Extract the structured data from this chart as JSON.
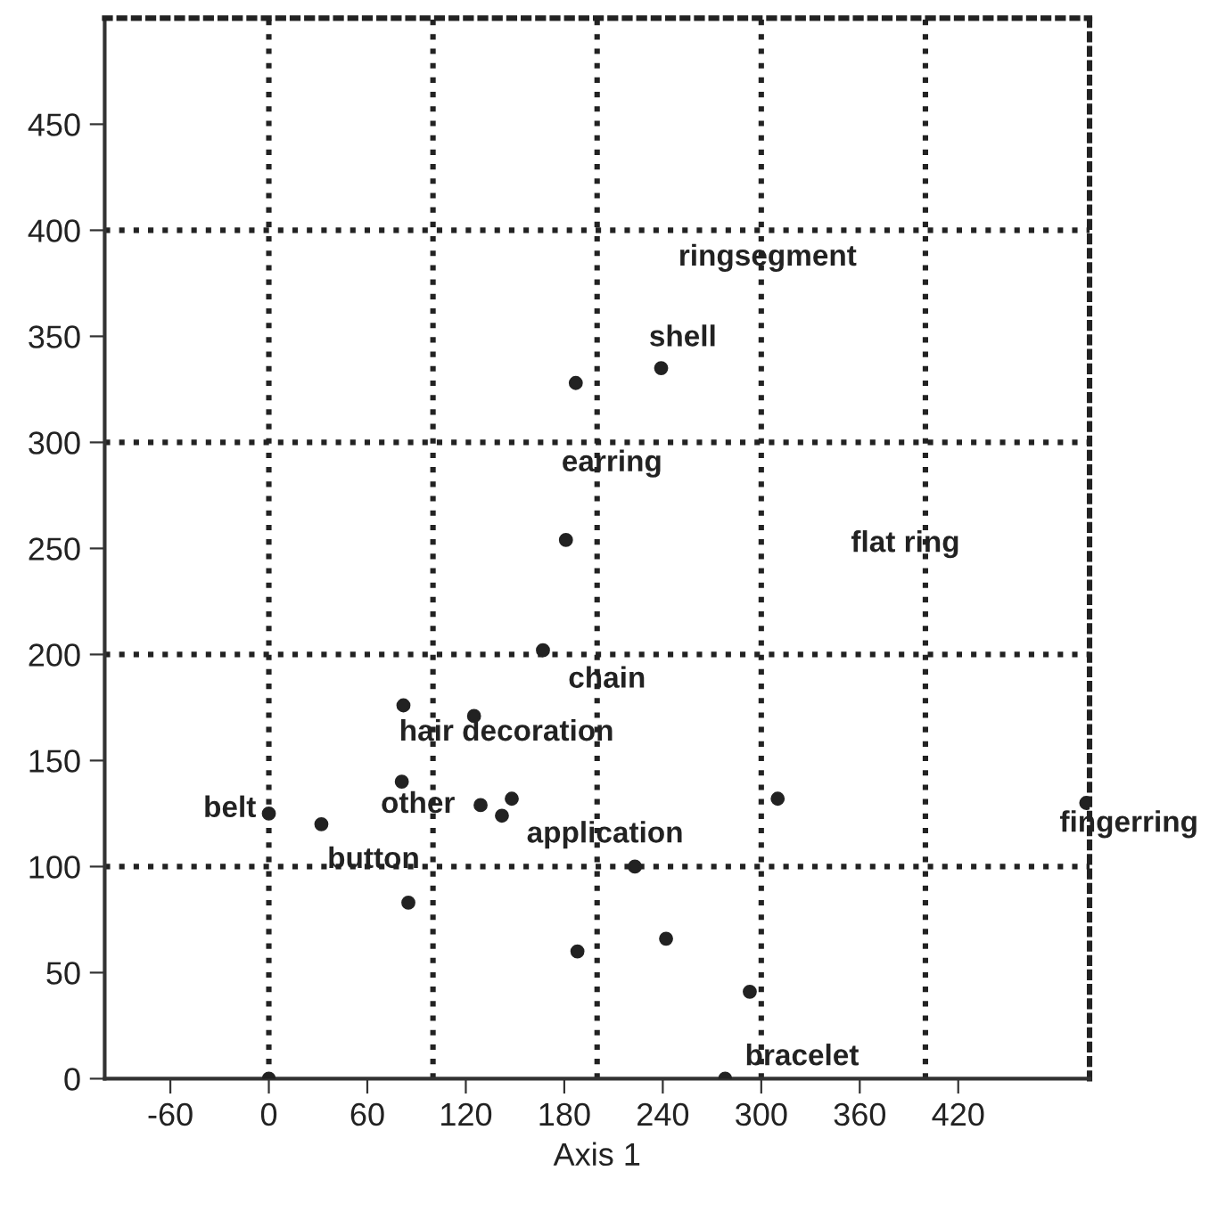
{
  "chart_data": {
    "type": "scatter",
    "xlabel": "Axis 1",
    "x": [
      0,
      0,
      32,
      82,
      81,
      85,
      125,
      129,
      142,
      148,
      167,
      223,
      188,
      242,
      293,
      278,
      310,
      498,
      187,
      239,
      181
    ],
    "series": [
      {
        "color": "#222222",
        "values": [
          0,
          125,
          120,
          176,
          140,
          83,
          171,
          129,
          124,
          132,
          202,
          100,
          60,
          66,
          41,
          0,
          132,
          130,
          328,
          335,
          254
        ]
      }
    ],
    "marker": "circle",
    "xlim": [
      -100,
      500
    ],
    "ylim": [
      0,
      500
    ],
    "xticks": [
      -60,
      0,
      60,
      120,
      180,
      240,
      300,
      360,
      420
    ],
    "yticks": [
      0,
      50,
      100,
      150,
      200,
      250,
      300,
      350,
      400,
      450
    ],
    "grid": false,
    "ref_lines": [
      {
        "axis": "x",
        "value": 0,
        "line_style": "dotted",
        "color": "#222222"
      },
      {
        "axis": "x",
        "value": 100,
        "line_style": "dotted",
        "color": "#222222"
      },
      {
        "axis": "x",
        "value": 200,
        "line_style": "dotted",
        "color": "#222222"
      },
      {
        "axis": "x",
        "value": 300,
        "line_style": "dotted",
        "color": "#222222"
      },
      {
        "axis": "x",
        "value": 400,
        "line_style": "dotted",
        "color": "#222222"
      },
      {
        "axis": "y",
        "value": 100,
        "line_style": "dotted",
        "color": "#222222"
      },
      {
        "axis": "y",
        "value": 200,
        "line_style": "dotted",
        "color": "#222222"
      },
      {
        "axis": "y",
        "value": 300,
        "line_style": "dotted",
        "color": "#222222"
      },
      {
        "axis": "y",
        "value": 400,
        "line_style": "dotted",
        "color": "#222222"
      }
    ],
    "annotations": [
      "ringsegment",
      "shell",
      "earring",
      "flat ring",
      "chain",
      "hair decoration",
      "belt",
      "other",
      "application",
      "button",
      "fingerring",
      "bracelet"
    ]
  }
}
